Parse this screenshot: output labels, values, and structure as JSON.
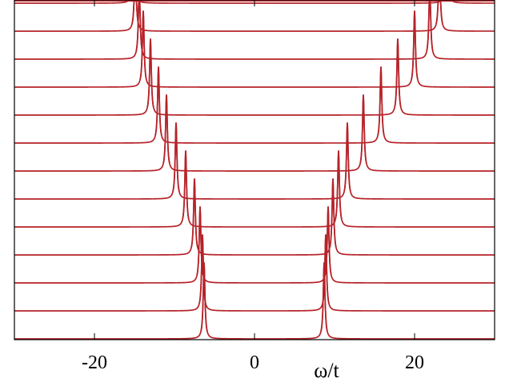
{
  "chart_data": {
    "type": "line",
    "title": "",
    "xlabel": "ω/t",
    "ylabel": "",
    "xlim": [
      -30,
      30
    ],
    "x_ticks": [
      -20,
      0,
      20
    ],
    "x_tick_labels": [
      "-20",
      "0",
      "20"
    ],
    "grid": false,
    "legend": "none",
    "offset_stacked": true,
    "line_color": "#b52228",
    "peak_width": 0.13,
    "series": [
      {
        "peaks": [
          -6.3,
          8.7
        ]
      },
      {
        "peaks": [
          -6.5,
          8.9
        ]
      },
      {
        "peaks": [
          -6.8,
          9.2
        ]
      },
      {
        "peaks": [
          -7.5,
          9.8
        ]
      },
      {
        "peaks": [
          -8.6,
          10.5
        ]
      },
      {
        "peaks": [
          -9.8,
          11.6
        ]
      },
      {
        "peaks": [
          -11.0,
          13.6
        ]
      },
      {
        "peaks": [
          -12.0,
          15.8
        ]
      },
      {
        "peaks": [
          -13.0,
          17.9
        ]
      },
      {
        "peaks": [
          -13.9,
          20.0
        ]
      },
      {
        "peaks": [
          -14.4,
          21.9
        ]
      },
      {
        "peaks": [
          -14.9,
          23.1
        ]
      },
      {
        "peaks": [
          -15.1,
          24.0
        ]
      },
      {
        "peaks": [
          -15.2,
          24.6
        ]
      }
    ]
  }
}
